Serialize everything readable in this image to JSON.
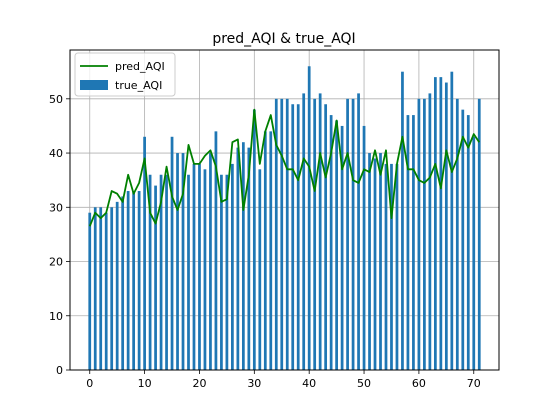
{
  "chart_data": {
    "type": "bar",
    "title": "pred_AQI & true_AQI",
    "xlabel": "",
    "ylabel": "",
    "xlim": [
      -3.6,
      74.6
    ],
    "ylim": [
      0,
      59
    ],
    "xticks": [
      0,
      10,
      20,
      30,
      40,
      50,
      60,
      70
    ],
    "yticks": [
      0,
      10,
      20,
      30,
      40,
      50
    ],
    "grid": true,
    "legend_position": "top-left",
    "x": [
      0,
      1,
      2,
      3,
      4,
      5,
      6,
      7,
      8,
      9,
      10,
      11,
      12,
      13,
      14,
      15,
      16,
      17,
      18,
      19,
      20,
      21,
      22,
      23,
      24,
      25,
      26,
      27,
      28,
      29,
      30,
      31,
      32,
      33,
      34,
      35,
      36,
      37,
      38,
      39,
      40,
      41,
      42,
      43,
      44,
      45,
      46,
      47,
      48,
      49,
      50,
      51,
      52,
      53,
      54,
      55,
      56,
      57,
      58,
      59,
      60,
      61,
      62,
      63,
      64,
      65,
      66,
      67,
      68,
      69,
      70,
      71
    ],
    "series": [
      {
        "name": "true_AQI",
        "type": "bar",
        "color": "#1f77b4",
        "values": [
          29,
          30,
          30,
          29,
          30,
          31,
          32,
          33,
          33,
          33,
          43,
          36,
          34,
          36,
          36,
          43,
          40,
          40,
          36,
          38,
          38,
          37,
          40,
          44,
          36,
          36,
          38,
          41,
          42,
          41,
          48,
          37,
          44,
          44,
          50,
          50,
          50,
          49,
          49,
          51,
          56,
          50,
          51,
          49,
          47,
          46,
          45,
          50,
          50,
          51,
          45,
          40,
          39,
          40,
          38,
          38,
          38,
          55,
          47,
          47,
          50,
          50,
          51,
          54,
          54,
          53,
          55,
          50,
          48,
          47,
          43,
          50
        ]
      },
      {
        "name": "pred_AQI",
        "type": "line",
        "color": "#008000",
        "values": [
          26.5,
          29,
          28,
          29,
          33,
          32.5,
          31,
          36,
          32.5,
          34.5,
          39,
          29,
          27,
          31,
          37.5,
          32,
          29.5,
          32.5,
          41.5,
          38,
          38,
          39.5,
          40.5,
          37.5,
          31,
          31.5,
          42,
          42.5,
          29.5,
          36,
          48,
          38,
          44,
          47,
          41.5,
          39.5,
          37,
          37,
          35,
          39,
          37.5,
          33,
          40,
          35.5,
          40,
          46,
          37,
          40,
          35,
          34.5,
          37,
          36.5,
          40.5,
          36,
          40.5,
          28,
          38,
          43,
          37,
          37,
          35,
          34.5,
          35.5,
          38,
          33.5,
          40.5,
          36.5,
          39,
          43,
          41,
          43.5,
          42
        ]
      }
    ]
  }
}
